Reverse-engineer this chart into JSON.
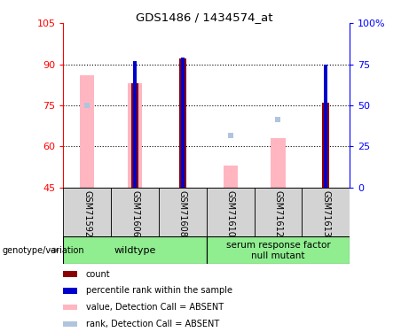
{
  "title": "GDS1486 / 1434574_at",
  "samples": [
    "GSM71592",
    "GSM71606",
    "GSM71608",
    "GSM71610",
    "GSM71612",
    "GSM71613"
  ],
  "bar_bottom": 45,
  "ylim_left": [
    45,
    105
  ],
  "ylim_right": [
    0,
    100
  ],
  "yticks_left": [
    45,
    60,
    75,
    90,
    105
  ],
  "yticks_right": [
    0,
    25,
    50,
    75,
    100
  ],
  "ytick_labels_right": [
    "0",
    "25",
    "50",
    "75",
    "100%"
  ],
  "count_bars": {
    "GSM71592": null,
    "GSM71606": 83,
    "GSM71608": 92,
    "GSM71610": null,
    "GSM71612": null,
    "GSM71613": 76
  },
  "value_absent_bars": {
    "GSM71592": 86,
    "GSM71606": 83,
    "GSM71608": null,
    "GSM71610": 53,
    "GSM71612": 63,
    "GSM71613": null
  },
  "percentile_rank_bars": {
    "GSM71592": null,
    "GSM71606": 77,
    "GSM71608": 79,
    "GSM71610": null,
    "GSM71612": null,
    "GSM71613": 75
  },
  "rank_absent_squares": {
    "GSM71592": 75,
    "GSM71606": null,
    "GSM71608": null,
    "GSM71610": 64,
    "GSM71612": 70,
    "GSM71613": null
  },
  "count_color": "#8B0000",
  "value_absent_color": "#FFB6C1",
  "percentile_color": "#0000CD",
  "rank_absent_color": "#B0C4DE",
  "legend_entries": [
    {
      "color": "#8B0000",
      "label": "count"
    },
    {
      "color": "#0000CD",
      "label": "percentile rank within the sample"
    },
    {
      "color": "#FFB6C1",
      "label": "value, Detection Call = ABSENT"
    },
    {
      "color": "#B0C4DE",
      "label": "rank, Detection Call = ABSENT"
    }
  ],
  "sample_row_color": "#d3d3d3",
  "group_row_color": "#90EE90",
  "genotype_label": "genotype/variation",
  "group1_label": "wildtype",
  "group2_label": "serum response factor\nnull mutant",
  "gridlines": [
    60,
    75,
    90
  ],
  "left_axis_color": "red",
  "right_axis_color": "blue"
}
